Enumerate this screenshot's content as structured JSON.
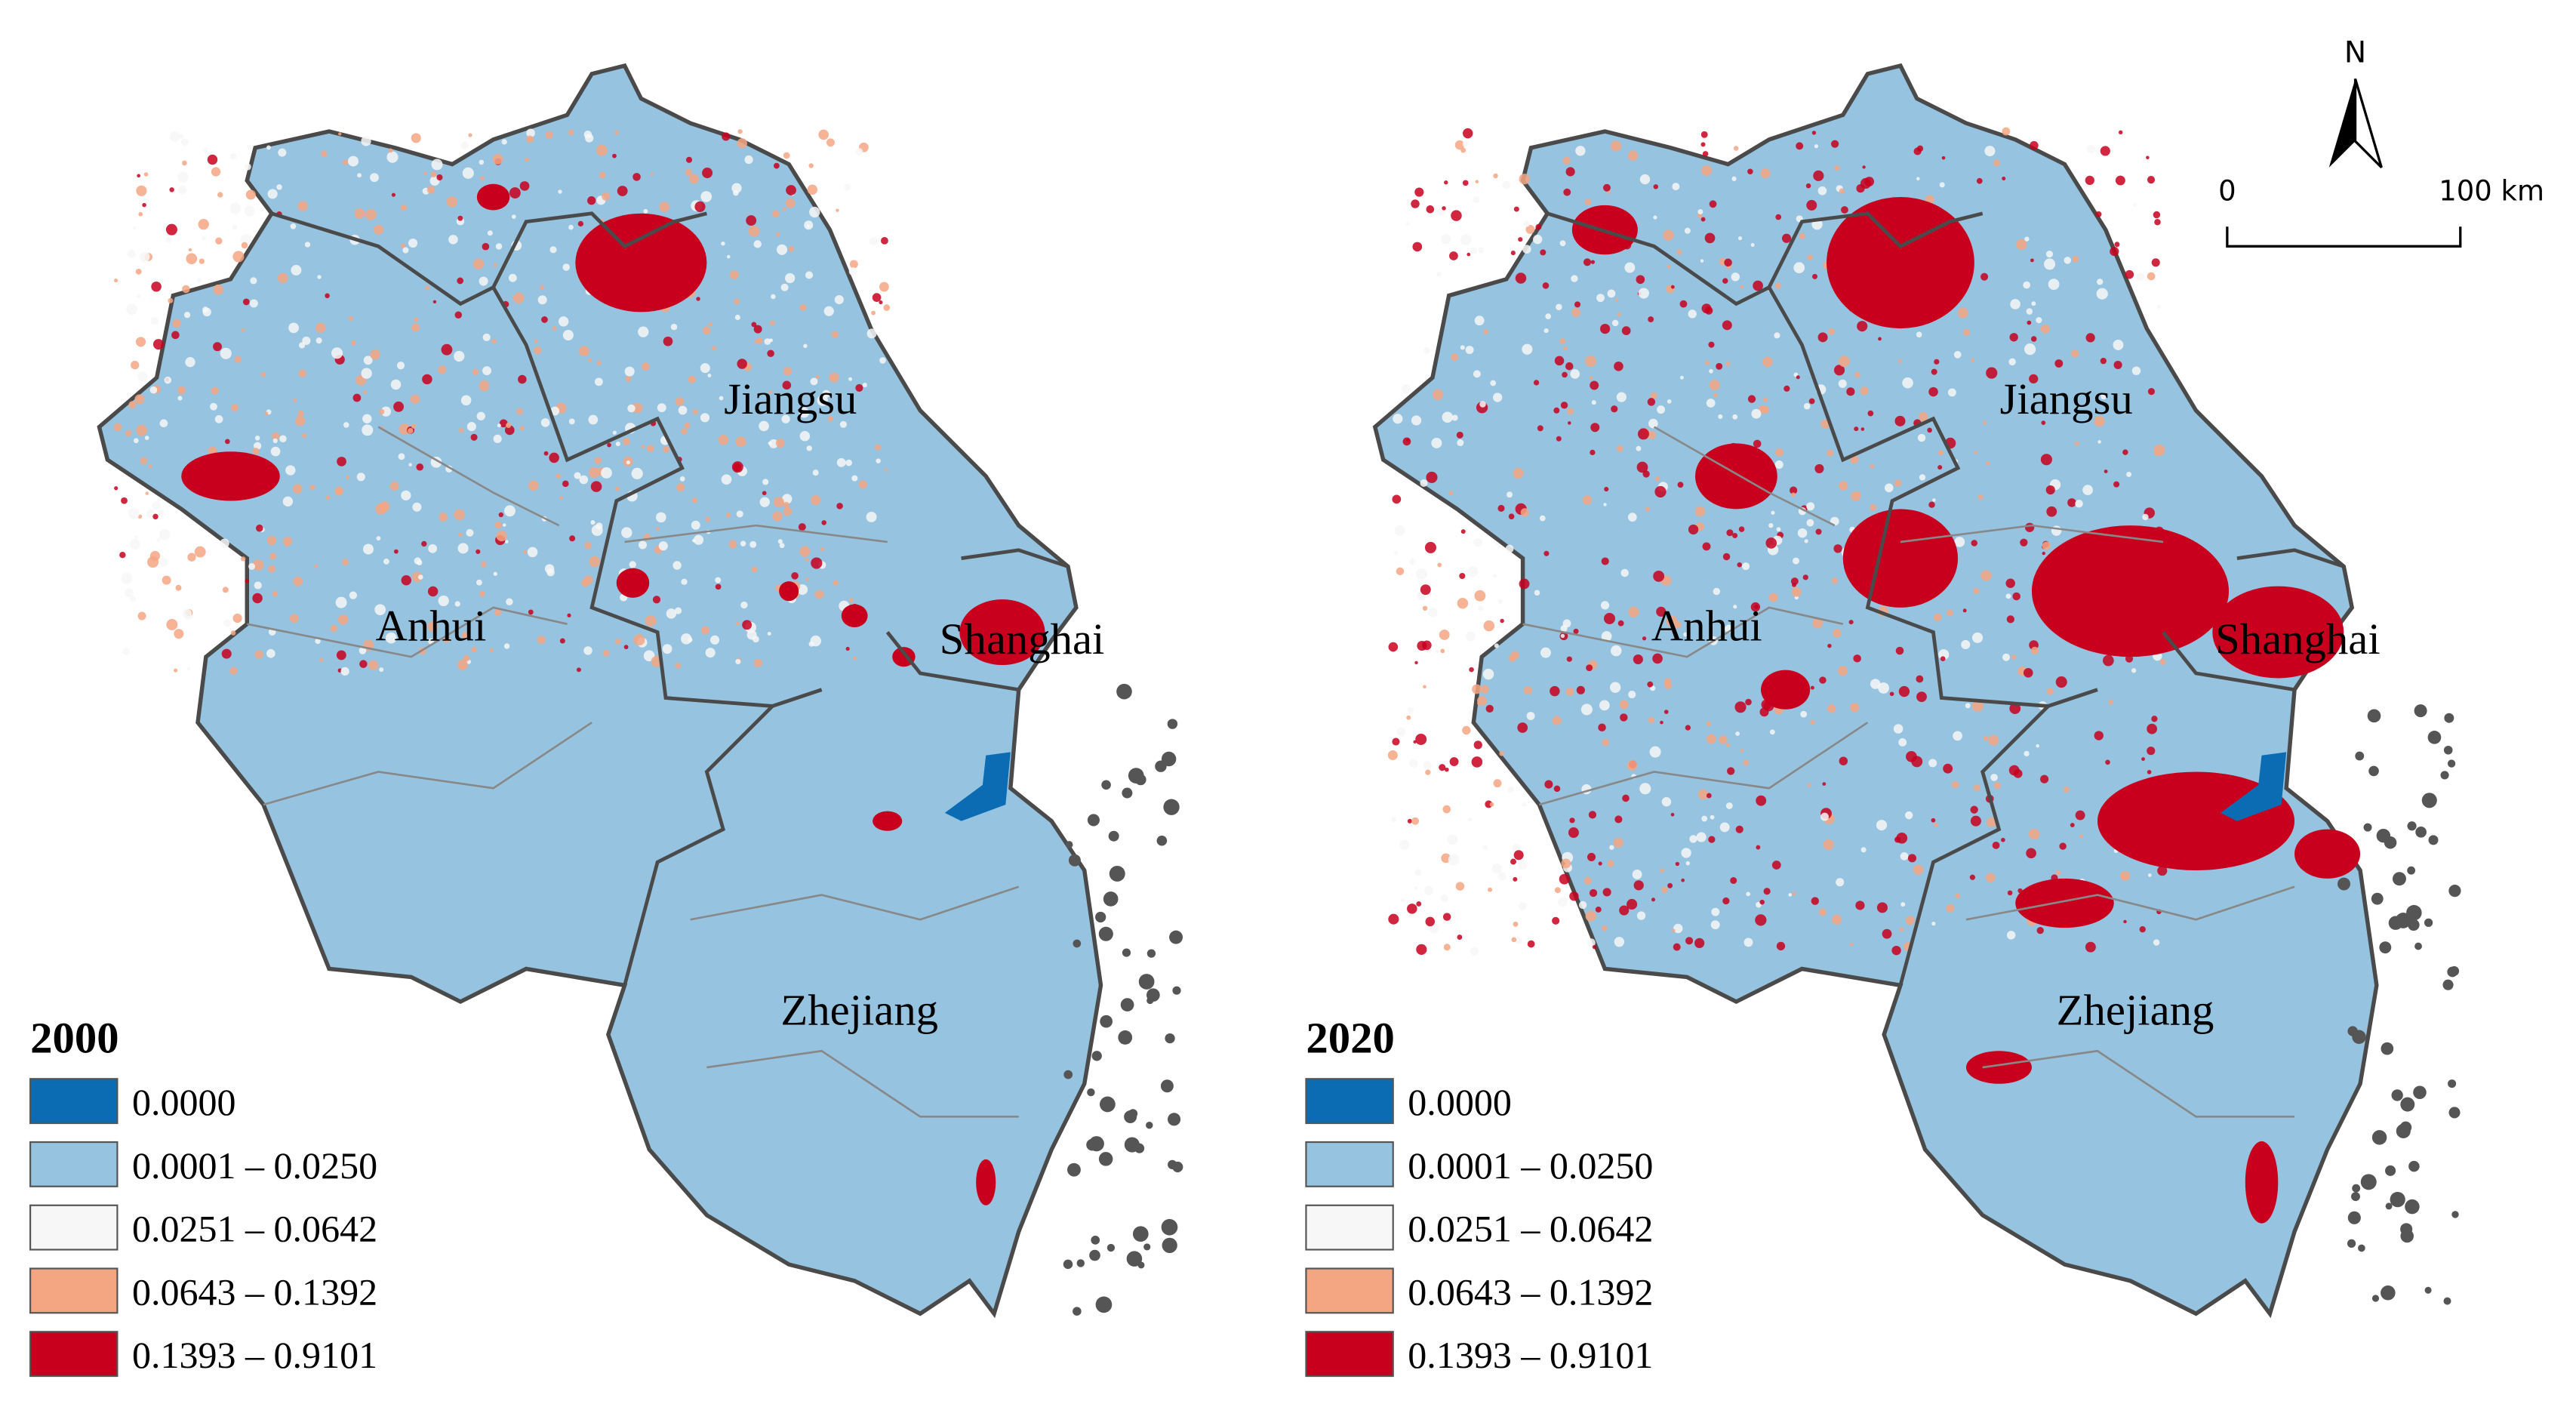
{
  "maps": [
    {
      "year": "2000"
    },
    {
      "year": "2020"
    }
  ],
  "regions": [
    "Jiangsu",
    "Anhui",
    "Shanghai",
    "Zhejiang"
  ],
  "legend": {
    "classes": [
      {
        "label": "0.0000",
        "color": "#0b6cb3"
      },
      {
        "label": "0.0001 – 0.0250",
        "color": "#96c3df"
      },
      {
        "label": "0.0251 – 0.0642",
        "color": "#f7f7f7"
      },
      {
        "label": "0.0643 – 0.1392",
        "color": "#f4a683"
      },
      {
        "label": "0.1393 – 0.9101",
        "color": "#c8001e"
      }
    ]
  },
  "north_arrow": "N",
  "scale_bar": {
    "start": "0",
    "end": "100 km"
  }
}
